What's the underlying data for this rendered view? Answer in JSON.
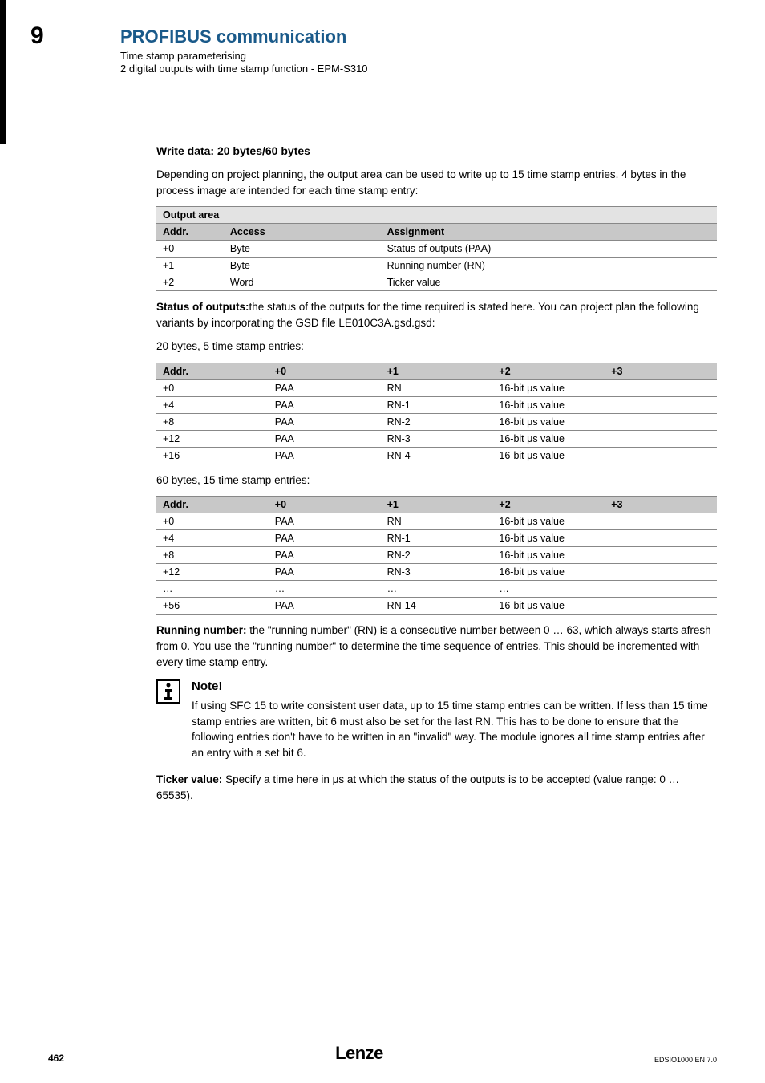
{
  "chapter_num": "9",
  "chapter_title": "PROFIBUS communication",
  "sub1": "Time stamp parameterising",
  "sub2": "2 digital outputs with time stamp function - EPM-S310",
  "h_write": "Write data: 20 bytes/60 bytes",
  "p_write": "Depending on project planning, the output area can be used to write up to 15 time stamp entries. 4 bytes in the process image are intended for each time stamp entry:",
  "output_area": {
    "caption": "Output area",
    "headers": [
      "Addr.",
      "Access",
      "Assignment"
    ],
    "header_bg": "#c8c8c8",
    "caption_bg": "#e3e3e3",
    "col_widths": [
      "12%",
      "28%",
      "60%"
    ],
    "rows": [
      [
        "+0",
        "Byte",
        "Status of outputs (PAA)"
      ],
      [
        "+1",
        "Byte",
        "Running number (RN)"
      ],
      [
        "+2",
        "Word",
        "Ticker value"
      ]
    ]
  },
  "p_status1": "the status of the outputs for the time required is stated here. You can project plan the following variants by incorporating the GSD file LE010C3A.gsd.gsd:",
  "status_label": "Status of outputs:",
  "p_20bytes": "20 bytes, 5 time stamp entries:",
  "tbl20": {
    "headers": [
      "Addr.",
      "+0",
      "+1",
      "+2",
      "+3"
    ],
    "header_bg": "#c8c8c8",
    "col_widths": [
      "20%",
      "20%",
      "20%",
      "20%",
      "20%"
    ],
    "rows": [
      [
        "+0",
        "PAA",
        "RN",
        "16-bit μs value",
        ""
      ],
      [
        "+4",
        "PAA",
        "RN-1",
        "16-bit μs value",
        ""
      ],
      [
        "+8",
        "PAA",
        "RN-2",
        "16-bit μs value",
        ""
      ],
      [
        "+12",
        "PAA",
        "RN-3",
        "16-bit μs value",
        ""
      ],
      [
        "+16",
        "PAA",
        "RN-4",
        "16-bit μs value",
        ""
      ]
    ]
  },
  "p_60bytes": "60 bytes, 15 time stamp entries:",
  "tbl60": {
    "headers": [
      "Addr.",
      "+0",
      "+1",
      "+2",
      "+3"
    ],
    "header_bg": "#c8c8c8",
    "col_widths": [
      "20%",
      "20%",
      "20%",
      "20%",
      "20%"
    ],
    "rows": [
      [
        "+0",
        "PAA",
        "RN",
        "16-bit μs value",
        ""
      ],
      [
        "+4",
        "PAA",
        "RN-1",
        "16-bit μs value",
        ""
      ],
      [
        "+8",
        "PAA",
        "RN-2",
        "16-bit μs value",
        ""
      ],
      [
        "+12",
        "PAA",
        "RN-3",
        "16-bit μs value",
        ""
      ],
      [
        "…",
        "…",
        "…",
        "…",
        ""
      ],
      [
        "+56",
        "PAA",
        "RN-14",
        "16-bit μs value",
        ""
      ]
    ]
  },
  "running_label": "Running number:",
  "p_running": " the \"running number\" (RN) is a consecutive number between 0 … 63, which always starts afresh from 0. You use the \"running number\" to determine the time sequence of entries. This should be incremented with every time stamp entry.",
  "note_title": "Note!",
  "note_text": "If using SFC 15 to write consistent user data, up to 15 time stamp entries can be written. If less than 15 time stamp entries are written, bit 6 must also be set for the last RN. This has to be done to ensure that the following entries don't have to be written in an \"invalid\" way. The module ignores all time stamp entries after an entry with a set bit 6.",
  "ticker_label": "Ticker value:",
  "p_ticker": " Specify a time here in μs at which the status of the outputs is to be accepted (value range: 0 … 65535).",
  "footer": {
    "page": "462",
    "logo": "Lenze",
    "docid": "EDSIO1000 EN 7.0"
  }
}
